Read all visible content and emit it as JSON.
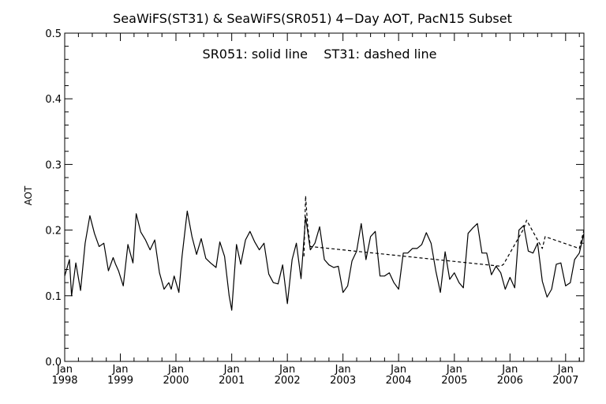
{
  "chart_data": {
    "type": "line",
    "title": "SeaWiFS(ST31) & SeaWiFS(SR051) 4−Day AOT, PacN15 Subset",
    "annotation": "SR051: solid line    ST31: dashed line",
    "xlabel": "",
    "ylabel": "AOT",
    "xlim": [
      "1998-01-01",
      "2007-05-01"
    ],
    "ylim": [
      0.0,
      0.5
    ],
    "yticks": [
      0.0,
      0.1,
      0.2,
      0.3,
      0.4,
      0.5
    ],
    "ytick_labels": [
      "0.0",
      "0.1",
      "0.2",
      "0.3",
      "0.4",
      "0.5"
    ],
    "xticks": [
      "1998-01-01",
      "1999-01-01",
      "2000-01-01",
      "2001-01-01",
      "2002-01-01",
      "2003-01-01",
      "2004-01-01",
      "2005-01-01",
      "2006-01-01",
      "2007-01-01"
    ],
    "xtick_month": "Jan",
    "xtick_years": [
      "1998",
      "1999",
      "2000",
      "2001",
      "2002",
      "2003",
      "2004",
      "2005",
      "2006",
      "2007"
    ],
    "grid": false,
    "series": [
      {
        "name": "SR051",
        "style": "solid",
        "color": "#000000",
        "x": [
          "1998-01-01",
          "1998-02-01",
          "1998-02-15",
          "1998-03-15",
          "1998-04-15",
          "1998-05-15",
          "1998-06-15",
          "1998-07-15",
          "1998-08-15",
          "1998-09-15",
          "1998-10-15",
          "1998-11-15",
          "1998-12-01",
          "1998-12-20",
          "1999-01-20",
          "1999-02-20",
          "1999-03-25",
          "1999-04-15",
          "1999-05-15",
          "1999-06-15",
          "1999-07-15",
          "1999-08-15",
          "1999-09-15",
          "1999-10-15",
          "1999-11-15",
          "1999-12-01",
          "1999-12-20",
          "2000-01-20",
          "2000-02-10",
          "2000-03-15",
          "2000-04-15",
          "2000-05-15",
          "2000-06-15",
          "2000-07-15",
          "2000-08-15",
          "2000-09-20",
          "2000-10-15",
          "2000-11-15",
          "2000-12-15",
          "2001-01-01",
          "2001-02-01",
          "2001-03-01",
          "2001-04-01",
          "2001-05-01",
          "2001-06-01",
          "2001-07-01",
          "2001-08-01",
          "2001-09-01",
          "2001-10-01",
          "2001-11-01",
          "2001-12-01",
          "2002-01-01",
          "2002-02-01",
          "2002-03-01",
          "2002-04-01",
          "2002-05-01",
          "2002-06-01",
          "2002-07-01",
          "2002-08-01",
          "2002-09-01",
          "2002-10-01",
          "2002-11-01",
          "2002-12-01",
          "2003-01-01",
          "2003-02-01",
          "2003-03-01",
          "2003-04-01",
          "2003-05-01",
          "2003-06-01",
          "2003-07-01",
          "2003-08-01",
          "2003-09-01",
          "2003-10-01",
          "2003-11-01",
          "2003-12-01",
          "2004-01-01",
          "2004-02-01",
          "2004-03-01",
          "2004-04-01",
          "2004-05-01",
          "2004-06-01",
          "2004-07-01",
          "2004-08-01",
          "2004-09-01",
          "2004-10-01",
          "2004-11-01",
          "2004-12-01",
          "2005-01-01",
          "2005-02-01",
          "2005-03-01",
          "2005-04-01",
          "2005-05-01",
          "2005-06-01",
          "2005-07-01",
          "2005-08-01",
          "2005-09-01",
          "2005-10-01",
          "2005-11-01",
          "2005-12-01",
          "2006-01-01",
          "2006-02-01",
          "2006-03-01",
          "2006-04-01",
          "2006-05-01",
          "2006-06-01",
          "2006-07-01",
          "2006-08-01",
          "2006-09-01",
          "2006-10-01",
          "2006-11-01",
          "2006-12-01",
          "2007-01-01",
          "2007-02-01",
          "2007-03-01",
          "2007-04-01",
          "2007-05-01"
        ],
        "y": [
          0.13,
          0.155,
          0.1,
          0.15,
          0.108,
          0.18,
          0.222,
          0.195,
          0.175,
          0.18,
          0.138,
          0.158,
          0.148,
          0.138,
          0.115,
          0.178,
          0.15,
          0.225,
          0.197,
          0.185,
          0.17,
          0.185,
          0.135,
          0.11,
          0.12,
          0.11,
          0.13,
          0.105,
          0.16,
          0.229,
          0.19,
          0.163,
          0.187,
          0.157,
          0.15,
          0.143,
          0.182,
          0.16,
          0.1,
          0.078,
          0.178,
          0.148,
          0.185,
          0.198,
          0.182,
          0.17,
          0.18,
          0.133,
          0.12,
          0.118,
          0.147,
          0.088,
          0.155,
          0.18,
          0.126,
          0.22,
          0.17,
          0.18,
          0.205,
          0.155,
          0.147,
          0.143,
          0.145,
          0.105,
          0.115,
          0.153,
          0.168,
          0.21,
          0.155,
          0.19,
          0.198,
          0.13,
          0.13,
          0.135,
          0.12,
          0.11,
          0.165,
          0.165,
          0.172,
          0.172,
          0.178,
          0.196,
          0.18,
          0.138,
          0.105,
          0.167,
          0.125,
          0.135,
          0.12,
          0.112,
          0.195,
          0.203,
          0.21,
          0.165,
          0.165,
          0.132,
          0.145,
          0.135,
          0.11,
          0.128,
          0.112,
          0.2,
          0.207,
          0.168,
          0.165,
          0.18,
          0.122,
          0.098,
          0.11,
          0.148,
          0.15,
          0.115,
          0.12,
          0.155,
          0.165,
          0.195
        ]
      },
      {
        "name": "ST31",
        "style": "dashed",
        "color": "#000000",
        "x": [
          "2002-04-20",
          "2002-05-01",
          "2002-05-15",
          "2002-06-01",
          "2005-11-01",
          "2005-11-20",
          "2006-04-01",
          "2006-04-20",
          "2006-08-01",
          "2006-08-20",
          "2007-04-01",
          "2007-05-01"
        ],
        "y": [
          0.16,
          0.252,
          0.205,
          0.175,
          0.145,
          0.148,
          0.202,
          0.215,
          0.172,
          0.19,
          0.172,
          0.2
        ]
      }
    ]
  }
}
